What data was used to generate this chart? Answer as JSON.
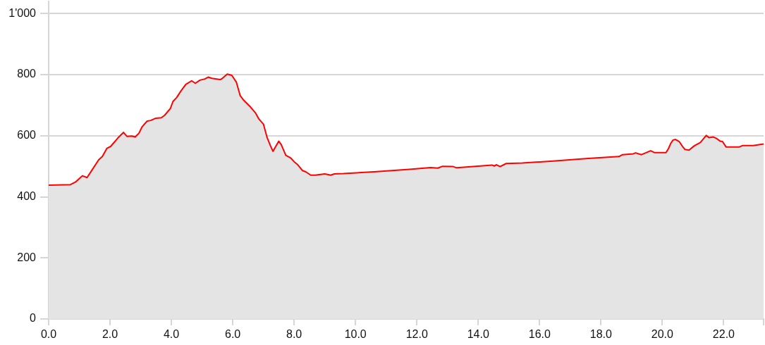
{
  "chart_data": {
    "type": "area",
    "color": "#ff0000",
    "marker": "none",
    "grid": "y",
    "xlim": [
      0,
      23.3
    ],
    "xticks": [
      {
        "value": 0,
        "label": "0.0"
      },
      {
        "value": 2,
        "label": "2.0"
      },
      {
        "value": 4,
        "label": "4.0"
      },
      {
        "value": 6,
        "label": "6.0"
      },
      {
        "value": 8,
        "label": "8.0"
      },
      {
        "value": 10,
        "label": "10.0"
      },
      {
        "value": 12,
        "label": "12.0"
      },
      {
        "value": 14,
        "label": "14.0"
      },
      {
        "value": 16,
        "label": "16.0"
      },
      {
        "value": 18,
        "label": "18.0"
      },
      {
        "value": 20,
        "label": "20.0"
      },
      {
        "value": 22,
        "label": "22.0"
      },
      {
        "value": 23.3,
        "label": null
      }
    ],
    "ylim": [
      0,
      1040
    ],
    "yticks": [
      0,
      200,
      400,
      600,
      800,
      {
        "value": 1000,
        "label": "1'000"
      }
    ],
    "x": [
      0,
      0.71,
      0.87,
      1.1,
      1.25,
      1.37,
      1.63,
      1.75,
      1.9,
      2.02,
      2.25,
      2.44,
      2.55,
      2.71,
      2.82,
      2.94,
      3.05,
      3.21,
      3.32,
      3.48,
      3.67,
      3.78,
      3.97,
      4.05,
      4.17,
      4.32,
      4.47,
      4.66,
      4.78,
      4.93,
      5.09,
      5.2,
      5.32,
      5.59,
      5.66,
      5.82,
      5.97,
      6.12,
      6.24,
      6.35,
      6.58,
      6.74,
      6.85,
      7.0,
      7.12,
      7.23,
      7.31,
      7.39,
      7.5,
      7.58,
      7.73,
      7.89,
      8.0,
      8.12,
      8.27,
      8.38,
      8.54,
      8.69,
      9.0,
      9.19,
      9.31,
      9.61,
      10.61,
      11.76,
      12.45,
      12.68,
      12.84,
      13.18,
      13.3,
      14.45,
      14.52,
      14.6,
      14.71,
      14.91,
      15.44,
      16.44,
      17.59,
      18.59,
      18.7,
      19.05,
      19.13,
      19.32,
      19.62,
      19.74,
      20.12,
      20.2,
      20.28,
      20.35,
      20.43,
      20.55,
      20.65,
      20.74,
      20.87,
      21.04,
      21.24,
      21.43,
      21.52,
      21.66,
      21.77,
      21.89,
      21.96,
      22.08,
      22.27,
      22.5,
      22.62,
      22.96,
      23.3
    ],
    "values": [
      438,
      440,
      448,
      469,
      463,
      481,
      521,
      532,
      559,
      565,
      592,
      611,
      598,
      599,
      596,
      608,
      630,
      648,
      650,
      657,
      659,
      667,
      690,
      712,
      725,
      748,
      768,
      780,
      772,
      782,
      786,
      792,
      788,
      784,
      788,
      802,
      798,
      775,
      732,
      717,
      694,
      675,
      655,
      638,
      594,
      567,
      549,
      563,
      582,
      571,
      536,
      527,
      515,
      505,
      486,
      482,
      471,
      471,
      475,
      471,
      475,
      476,
      482,
      490,
      496,
      494,
      500,
      499,
      495,
      504,
      501,
      505,
      499,
      509,
      511,
      517,
      526,
      532,
      538,
      541,
      544,
      538,
      551,
      545,
      545,
      558,
      576,
      586,
      588,
      581,
      566,
      555,
      553,
      567,
      578,
      601,
      594,
      596,
      591,
      582,
      581,
      563,
      563,
      563,
      568,
      568,
      573
    ]
  }
}
